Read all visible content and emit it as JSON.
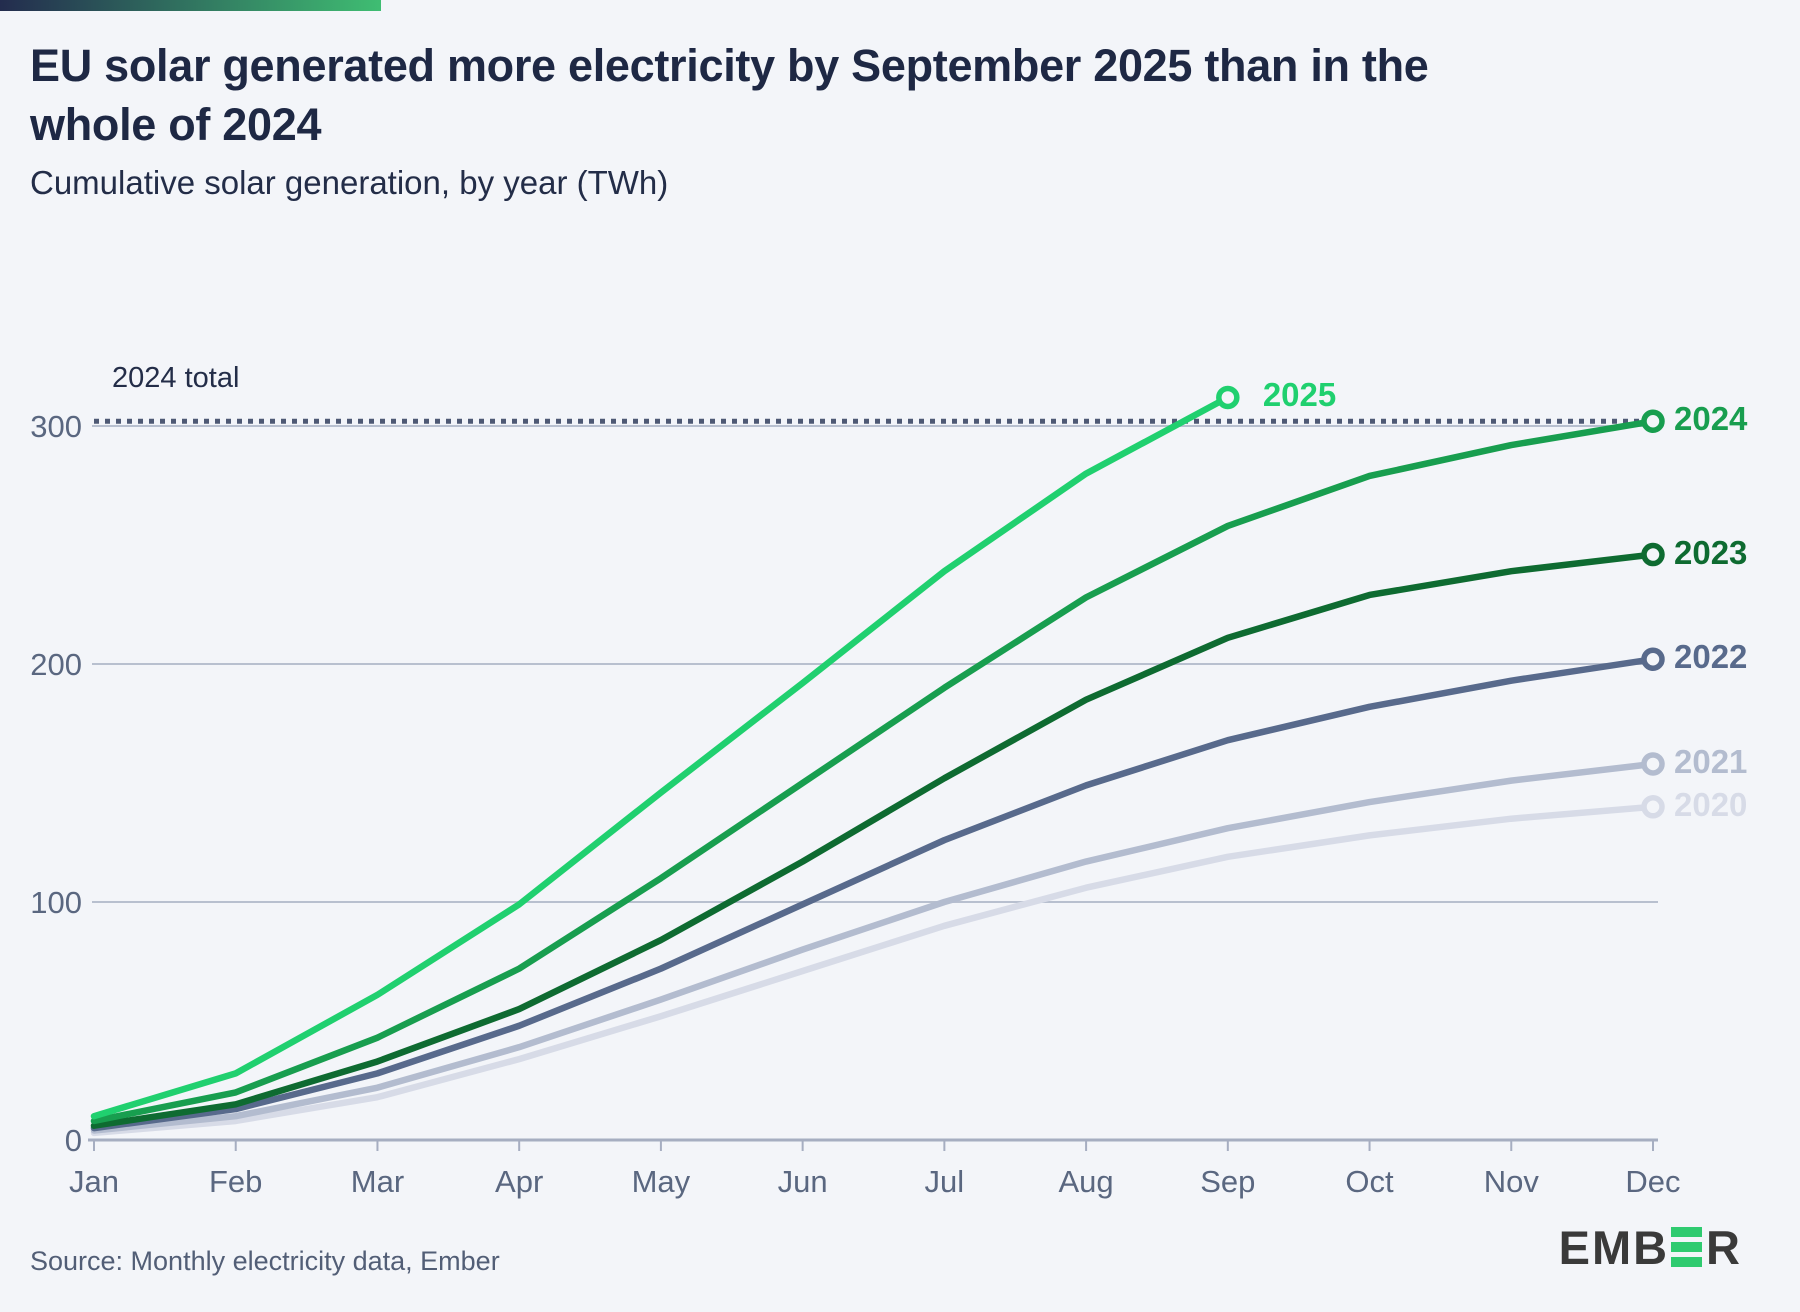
{
  "page": {
    "background": "#f3f5f9",
    "accent_bar": {
      "color_from": "#232c4e",
      "color_to": "#3fbd72"
    }
  },
  "header": {
    "title": "EU solar generated more electricity by September 2025 than in the whole of 2024",
    "subtitle": "Cumulative solar generation, by year (TWh)"
  },
  "chart_data": {
    "type": "line",
    "title": "EU solar generated more electricity by September 2025 than in the whole of 2024",
    "subtitle": "Cumulative solar generation, by year (TWh)",
    "unit": "TWh",
    "x_labels": [
      "Jan",
      "Feb",
      "Mar",
      "Apr",
      "May",
      "Jun",
      "Jul",
      "Aug",
      "Sep",
      "Oct",
      "Nov",
      "Dec"
    ],
    "y_ticks": [
      0,
      100,
      200,
      300
    ],
    "ylim": [
      0,
      330
    ],
    "grid": "horizontal",
    "legend_position": "line-end-labels-right",
    "reference_line": {
      "label": "2024 total",
      "value": 302,
      "style": "dotted",
      "color": "#4e5974"
    },
    "series": [
      {
        "name": "2020",
        "color": "#d7dbe7",
        "values": [
          3,
          8,
          18,
          34,
          52,
          71,
          90,
          106,
          119,
          128,
          135,
          140
        ]
      },
      {
        "name": "2021",
        "color": "#b3bccf",
        "values": [
          4,
          10,
          22,
          39,
          59,
          80,
          100,
          117,
          131,
          142,
          151,
          158
        ]
      },
      {
        "name": "2022",
        "color": "#586a8c",
        "values": [
          5,
          13,
          28,
          48,
          72,
          99,
          126,
          149,
          168,
          182,
          193,
          202
        ]
      },
      {
        "name": "2023",
        "color": "#0e6b31",
        "values": [
          6,
          15,
          33,
          55,
          84,
          117,
          152,
          185,
          211,
          229,
          239,
          246
        ]
      },
      {
        "name": "2024",
        "color": "#189e4f",
        "values": [
          8,
          20,
          43,
          72,
          110,
          150,
          190,
          228,
          258,
          279,
          292,
          302
        ]
      },
      {
        "name": "2025",
        "color": "#20d06f",
        "values": [
          10,
          28,
          61,
          99,
          146,
          192,
          239,
          280,
          312
        ]
      }
    ]
  },
  "footer": {
    "source": "Source: Monthly electricity data, Ember",
    "logo": {
      "text_left": "EMB",
      "text_right": "R",
      "bar_color": "#2fcb70",
      "text_color": "#3a3a3a"
    }
  }
}
